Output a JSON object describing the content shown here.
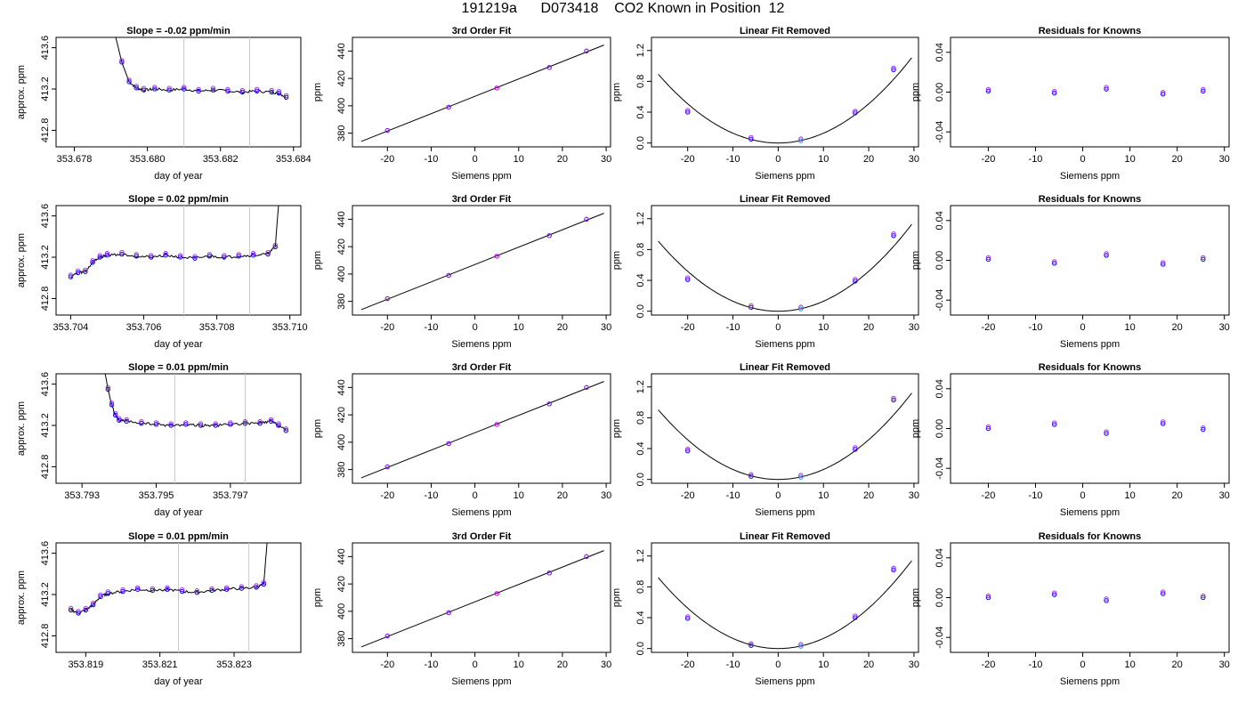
{
  "title": "191219a      D073418    CO2 Known in Position  12",
  "colors": {
    "line": "#000000",
    "gridline": "#c8c8c8",
    "purple": "#a020f0",
    "blue": "#0000ff",
    "cyan": "#00a0e0",
    "magenta": "#ff00ff"
  },
  "chart_data": [
    {
      "type": "line",
      "row": 0,
      "panel": "time",
      "title": "Slope =  -0.02  ppm/min",
      "xlabel": "day of year",
      "ylabel": "approx. ppm",
      "xlim": [
        353.6775,
        353.6842
      ],
      "ylim": [
        412.64,
        413.7
      ],
      "xticks": [
        353.678,
        353.68,
        353.682,
        353.684
      ],
      "xtick_labels": [
        "353.678",
        "353.680",
        "353.682",
        "353.684"
      ],
      "yticks": [
        412.8,
        413.2,
        413.6
      ],
      "ytick_labels": [
        "412.8",
        "413.2",
        "413.6"
      ],
      "vlines": [
        353.681,
        353.6828
      ],
      "x": [
        353.6791,
        353.6793,
        353.6795,
        353.6797,
        353.6799,
        353.6802,
        353.6806,
        353.681,
        353.6814,
        353.6818,
        353.6822,
        353.6826,
        353.683,
        353.6834,
        353.6836,
        353.6838
      ],
      "y": [
        413.75,
        413.46,
        413.27,
        413.21,
        413.19,
        413.2,
        413.19,
        413.2,
        413.18,
        413.19,
        413.18,
        413.17,
        413.18,
        413.17,
        413.16,
        413.12
      ]
    },
    {
      "type": "line",
      "row": 0,
      "panel": "fit",
      "title": "3rd Order Fit",
      "xlabel": "Siemens ppm",
      "ylabel": "ppm",
      "xlim": [
        -28,
        31
      ],
      "ylim": [
        370,
        450
      ],
      "xticks": [
        -20,
        -10,
        0,
        10,
        20,
        30
      ],
      "xtick_labels": [
        "-20",
        "-10",
        "0",
        "10",
        "20",
        "30"
      ],
      "yticks": [
        380,
        400,
        420,
        440
      ],
      "ytick_labels": [
        "380",
        "400",
        "420",
        "440"
      ],
      "x": [
        -20,
        -6,
        5,
        17,
        25.5
      ],
      "y": [
        382,
        399,
        413,
        428,
        440
      ]
    },
    {
      "type": "line",
      "row": 0,
      "panel": "linear",
      "title": "Linear Fit Removed",
      "xlabel": "Siemens ppm",
      "ylabel": "ppm",
      "xlim": [
        -28,
        31
      ],
      "ylim": [
        -0.05,
        1.37
      ],
      "xticks": [
        -20,
        -10,
        0,
        10,
        20,
        30
      ],
      "xtick_labels": [
        "-20",
        "-10",
        "0",
        "10",
        "20",
        "30"
      ],
      "yticks": [
        0.0,
        0.4,
        0.8,
        1.2
      ],
      "ytick_labels": [
        "0.0",
        "0.4",
        "0.8",
        "1.2"
      ],
      "x": [
        -20,
        -6,
        5,
        17,
        25.5
      ],
      "y": [
        0.4,
        0.05,
        0.03,
        0.39,
        0.95
      ]
    },
    {
      "type": "scatter",
      "row": 0,
      "panel": "resid",
      "title": "Residuals for Knowns",
      "xlabel": "Siemens ppm",
      "ylabel": "ppm",
      "xlim": [
        -28,
        31
      ],
      "ylim": [
        -0.055,
        0.055
      ],
      "xticks": [
        -20,
        -10,
        0,
        10,
        20,
        30
      ],
      "xtick_labels": [
        "-20",
        "-10",
        "0",
        "10",
        "20",
        "30"
      ],
      "yticks": [
        -0.04,
        0.0,
        0.04
      ],
      "ytick_labels": [
        "-0.04",
        "0.00",
        "0.04"
      ],
      "x": [
        -20,
        -6,
        5,
        17,
        25.5
      ],
      "y": [
        0.001,
        -0.001,
        0.003,
        -0.002,
        0.001
      ]
    },
    {
      "type": "line",
      "row": 1,
      "panel": "time",
      "title": "Slope =  0.02  ppm/min",
      "xlabel": "day of year",
      "ylabel": "approx. ppm",
      "xlim": [
        353.7036,
        353.7103
      ],
      "ylim": [
        412.64,
        413.7
      ],
      "xticks": [
        353.704,
        353.706,
        353.708,
        353.71
      ],
      "xtick_labels": [
        "353.704",
        "353.706",
        "353.708",
        "353.710"
      ],
      "yticks": [
        412.8,
        413.2,
        413.6
      ],
      "ytick_labels": [
        "412.8",
        "413.2",
        "413.6"
      ],
      "vlines": [
        353.7071,
        353.7089
      ],
      "x": [
        353.704,
        353.7042,
        353.7044,
        353.7046,
        353.7048,
        353.705,
        353.7054,
        353.7058,
        353.7062,
        353.7066,
        353.707,
        353.7074,
        353.7078,
        353.7082,
        353.7086,
        353.709,
        353.7094,
        353.7096,
        353.7097
      ],
      "y": [
        413.01,
        413.05,
        413.06,
        413.15,
        413.2,
        413.22,
        413.23,
        413.21,
        413.2,
        413.22,
        413.2,
        413.19,
        413.21,
        413.2,
        413.21,
        413.22,
        413.23,
        413.3,
        413.75
      ]
    },
    {
      "type": "line",
      "row": 1,
      "panel": "fit",
      "title": "3rd Order Fit",
      "xlabel": "Siemens ppm",
      "ylabel": "ppm",
      "xlim": [
        -28,
        31
      ],
      "ylim": [
        370,
        450
      ],
      "xticks": [
        -20,
        -10,
        0,
        10,
        20,
        30
      ],
      "xtick_labels": [
        "-20",
        "-10",
        "0",
        "10",
        "20",
        "30"
      ],
      "yticks": [
        380,
        400,
        420,
        440
      ],
      "ytick_labels": [
        "380",
        "400",
        "420",
        "440"
      ],
      "x": [
        -20,
        -6,
        5,
        17,
        25.5
      ],
      "y": [
        382,
        399,
        413,
        428,
        440
      ]
    },
    {
      "type": "line",
      "row": 1,
      "panel": "linear",
      "title": "Linear Fit Removed",
      "xlabel": "Siemens ppm",
      "ylabel": "ppm",
      "xlim": [
        -28,
        31
      ],
      "ylim": [
        -0.05,
        1.37
      ],
      "xticks": [
        -20,
        -10,
        0,
        10,
        20,
        30
      ],
      "xtick_labels": [
        "-20",
        "-10",
        "0",
        "10",
        "20",
        "30"
      ],
      "yticks": [
        0.0,
        0.4,
        0.8,
        1.2
      ],
      "ytick_labels": [
        "0.0",
        "0.4",
        "0.8",
        "1.2"
      ],
      "x": [
        -20,
        -6,
        5,
        17,
        25.5
      ],
      "y": [
        0.41,
        0.05,
        0.03,
        0.39,
        0.98
      ]
    },
    {
      "type": "scatter",
      "row": 1,
      "panel": "resid",
      "title": "Residuals for Knowns",
      "xlabel": "Siemens ppm",
      "ylabel": "ppm",
      "xlim": [
        -28,
        31
      ],
      "ylim": [
        -0.055,
        0.055
      ],
      "xticks": [
        -20,
        -10,
        0,
        10,
        20,
        30
      ],
      "xtick_labels": [
        "-20",
        "-10",
        "0",
        "10",
        "20",
        "30"
      ],
      "yticks": [
        -0.04,
        0.0,
        0.04
      ],
      "ytick_labels": [
        "-0.04",
        "0.00",
        "0.04"
      ],
      "x": [
        -20,
        -6,
        5,
        17,
        25.5
      ],
      "y": [
        0.001,
        -0.003,
        0.005,
        -0.004,
        0.001
      ]
    },
    {
      "type": "line",
      "row": 2,
      "panel": "time",
      "title": "Slope =  0.01  ppm/min",
      "xlabel": "day of year",
      "ylabel": "approx. ppm",
      "xlim": [
        353.7923,
        353.7989
      ],
      "ylim": [
        412.64,
        413.7
      ],
      "xticks": [
        353.793,
        353.795,
        353.797
      ],
      "xtick_labels": [
        "353.793",
        "353.795",
        "353.797"
      ],
      "yticks": [
        412.8,
        413.2,
        413.6
      ],
      "ytick_labels": [
        "412.8",
        "413.2",
        "413.6"
      ],
      "vlines": [
        353.7955,
        353.7974
      ],
      "x": [
        353.7936,
        353.7937,
        353.7938,
        353.7939,
        353.794,
        353.7942,
        353.7946,
        353.795,
        353.7954,
        353.7958,
        353.7962,
        353.7966,
        353.797,
        353.7974,
        353.7978,
        353.7981,
        353.7983,
        353.7985
      ],
      "y": [
        413.75,
        413.55,
        413.4,
        413.3,
        413.25,
        413.24,
        413.22,
        413.21,
        413.2,
        413.21,
        413.2,
        413.2,
        413.21,
        413.22,
        413.22,
        413.24,
        413.2,
        413.15
      ]
    },
    {
      "type": "line",
      "row": 2,
      "panel": "fit",
      "title": "3rd Order Fit",
      "xlabel": "Siemens ppm",
      "ylabel": "ppm",
      "xlim": [
        -28,
        31
      ],
      "ylim": [
        370,
        450
      ],
      "xticks": [
        -20,
        -10,
        0,
        10,
        20,
        30
      ],
      "xtick_labels": [
        "-20",
        "-10",
        "0",
        "10",
        "20",
        "30"
      ],
      "yticks": [
        380,
        400,
        420,
        440
      ],
      "ytick_labels": [
        "380",
        "400",
        "420",
        "440"
      ],
      "x": [
        -20,
        -6,
        5,
        17,
        25.5
      ],
      "y": [
        382,
        399,
        413,
        428,
        440
      ]
    },
    {
      "type": "line",
      "row": 2,
      "panel": "linear",
      "title": "Linear Fit Removed",
      "xlabel": "Siemens ppm",
      "ylabel": "ppm",
      "xlim": [
        -28,
        31
      ],
      "ylim": [
        -0.05,
        1.37
      ],
      "xticks": [
        -20,
        -10,
        0,
        10,
        20,
        30
      ],
      "xtick_labels": [
        "-20",
        "-10",
        "0",
        "10",
        "20",
        "30"
      ],
      "yticks": [
        0.0,
        0.4,
        0.8,
        1.2
      ],
      "ytick_labels": [
        "0.0",
        "0.4",
        "0.8",
        "1.2"
      ],
      "x": [
        -20,
        -6,
        5,
        17,
        25.5
      ],
      "y": [
        0.37,
        0.04,
        0.03,
        0.39,
        1.03
      ]
    },
    {
      "type": "scatter",
      "row": 2,
      "panel": "resid",
      "title": "Residuals for Knowns",
      "xlabel": "Siemens ppm",
      "ylabel": "ppm",
      "xlim": [
        -28,
        31
      ],
      "ylim": [
        -0.055,
        0.055
      ],
      "xticks": [
        -20,
        -10,
        0,
        10,
        20,
        30
      ],
      "xtick_labels": [
        "-20",
        "-10",
        "0",
        "10",
        "20",
        "30"
      ],
      "yticks": [
        -0.04,
        0.0,
        0.04
      ],
      "ytick_labels": [
        "-0.04",
        "0.00",
        "0.04"
      ],
      "x": [
        -20,
        -6,
        5,
        17,
        25.5
      ],
      "y": [
        0.0,
        0.004,
        -0.005,
        0.005,
        -0.001
      ]
    },
    {
      "type": "line",
      "row": 3,
      "panel": "time",
      "title": "Slope =  0.01  ppm/min",
      "xlabel": "day of year",
      "ylabel": "approx. ppm",
      "xlim": [
        353.8182,
        353.8248
      ],
      "ylim": [
        412.64,
        413.7
      ],
      "xticks": [
        353.819,
        353.821,
        353.823
      ],
      "xtick_labels": [
        "353.819",
        "353.821",
        "353.823"
      ],
      "yticks": [
        412.8,
        413.2,
        413.6
      ],
      "ytick_labels": [
        "412.8",
        "413.2",
        "413.6"
      ],
      "vlines": [
        353.8215,
        353.8234
      ],
      "x": [
        353.8186,
        353.8188,
        353.819,
        353.8192,
        353.8194,
        353.8196,
        353.82,
        353.8204,
        353.8208,
        353.8212,
        353.8216,
        353.822,
        353.8224,
        353.8228,
        353.8232,
        353.8236,
        353.8238,
        353.8239
      ],
      "y": [
        413.05,
        413.02,
        413.05,
        413.1,
        413.18,
        413.21,
        413.23,
        413.25,
        413.24,
        413.25,
        413.23,
        413.22,
        413.24,
        413.25,
        413.26,
        413.27,
        413.3,
        413.75
      ]
    },
    {
      "type": "line",
      "row": 3,
      "panel": "fit",
      "title": "3rd Order Fit",
      "xlabel": "Siemens ppm",
      "ylabel": "ppm",
      "xlim": [
        -28,
        31
      ],
      "ylim": [
        370,
        450
      ],
      "xticks": [
        -20,
        -10,
        0,
        10,
        20,
        30
      ],
      "xtick_labels": [
        "-20",
        "-10",
        "0",
        "10",
        "20",
        "30"
      ],
      "yticks": [
        380,
        400,
        420,
        440
      ],
      "ytick_labels": [
        "380",
        "400",
        "420",
        "440"
      ],
      "x": [
        -20,
        -6,
        5,
        17,
        25.5
      ],
      "y": [
        382,
        399,
        413,
        428,
        440
      ]
    },
    {
      "type": "line",
      "row": 3,
      "panel": "linear",
      "title": "Linear Fit Removed",
      "xlabel": "Siemens ppm",
      "ylabel": "ppm",
      "xlim": [
        -28,
        31
      ],
      "ylim": [
        -0.05,
        1.37
      ],
      "xticks": [
        -20,
        -10,
        0,
        10,
        20,
        30
      ],
      "xtick_labels": [
        "-20",
        "-10",
        "0",
        "10",
        "20",
        "30"
      ],
      "yticks": [
        0.0,
        0.4,
        0.8,
        1.2
      ],
      "ytick_labels": [
        "0.0",
        "0.4",
        "0.8",
        "1.2"
      ],
      "x": [
        -20,
        -6,
        5,
        17,
        25.5
      ],
      "y": [
        0.39,
        0.04,
        0.03,
        0.4,
        1.02
      ]
    },
    {
      "type": "scatter",
      "row": 3,
      "panel": "resid",
      "title": "Residuals for Knowns",
      "xlabel": "Siemens ppm",
      "ylabel": "ppm",
      "xlim": [
        -28,
        31
      ],
      "ylim": [
        -0.055,
        0.055
      ],
      "xticks": [
        -20,
        -10,
        0,
        10,
        20,
        30
      ],
      "xtick_labels": [
        "-20",
        "-10",
        "0",
        "10",
        "20",
        "30"
      ],
      "yticks": [
        -0.04,
        0.0,
        0.04
      ],
      "ytick_labels": [
        "-0.04",
        "0.00",
        "0.04"
      ],
      "x": [
        -20,
        -6,
        5,
        17,
        25.5
      ],
      "y": [
        0.0,
        0.003,
        -0.003,
        0.004,
        0.0
      ]
    }
  ]
}
